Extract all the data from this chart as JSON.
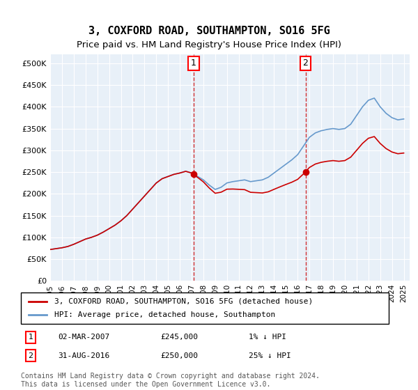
{
  "title": "3, COXFORD ROAD, SOUTHAMPTON, SO16 5FG",
  "subtitle": "Price paid vs. HM Land Registry's House Price Index (HPI)",
  "legend_line1": "3, COXFORD ROAD, SOUTHAMPTON, SO16 5FG (detached house)",
  "legend_line2": "HPI: Average price, detached house, Southampton",
  "transaction1_date": "02-MAR-2007",
  "transaction1_price": 245000,
  "transaction1_label": "1% ↓ HPI",
  "transaction2_date": "31-AUG-2016",
  "transaction2_price": 250000,
  "transaction2_label": "25% ↓ HPI",
  "footer": "Contains HM Land Registry data © Crown copyright and database right 2024.\nThis data is licensed under the Open Government Licence v3.0.",
  "hpi_color": "#6699cc",
  "price_color": "#cc0000",
  "marker_color": "#cc0000",
  "vline_color": "#cc0000",
  "background_plot": "#e8f0f8",
  "ylim": [
    0,
    520000
  ],
  "yticks": [
    0,
    50000,
    100000,
    150000,
    200000,
    250000,
    300000,
    350000,
    400000,
    450000,
    500000
  ],
  "ylabel_format": "£{0}K",
  "xlabel_years": [
    1995,
    1996,
    1997,
    1998,
    1999,
    2000,
    2001,
    2002,
    2003,
    2004,
    2005,
    2006,
    2007,
    2008,
    2009,
    2010,
    2011,
    2012,
    2013,
    2014,
    2015,
    2016,
    2017,
    2018,
    2019,
    2020,
    2021,
    2022,
    2023,
    2024,
    2025
  ]
}
